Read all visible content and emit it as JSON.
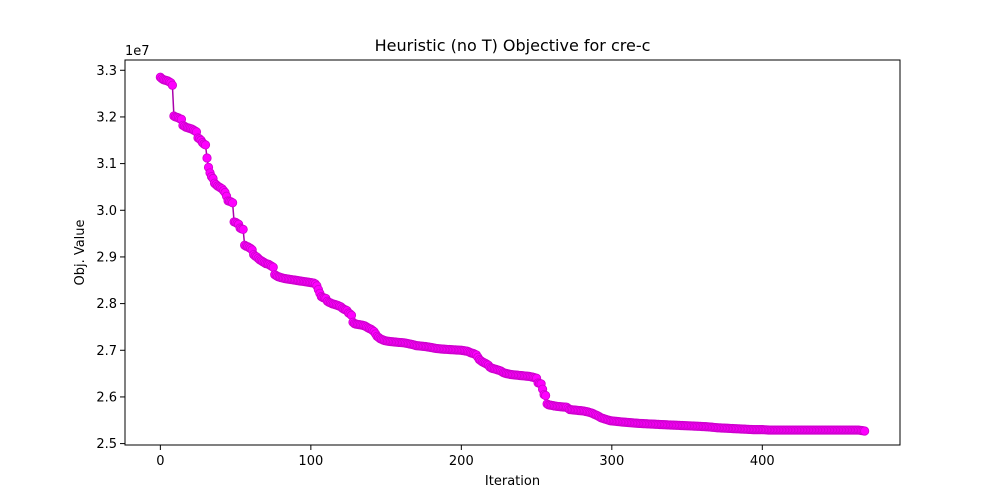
{
  "chart_data": {
    "type": "line",
    "title": "Heuristic (no T) Objective for cre-c",
    "xlabel": "Iteration",
    "ylabel": "Obj. Value",
    "y_scale_label": "1e7",
    "xlim": [
      -23.5,
      491.5
    ],
    "ylim": [
      24970000,
      33220000
    ],
    "x_ticks": [
      0,
      100,
      200,
      300,
      400
    ],
    "x_tick_labels": [
      "0",
      "100",
      "200",
      "300",
      "400"
    ],
    "y_ticks": [
      25000000,
      26000000,
      27000000,
      28000000,
      29000000,
      30000000,
      31000000,
      32000000,
      33000000
    ],
    "y_tick_labels": [
      "2.5",
      "2.6",
      "2.7",
      "2.8",
      "2.9",
      "3.0",
      "3.1",
      "3.2",
      "3.3"
    ],
    "grid": false,
    "series": [
      {
        "color": "#ff00ff",
        "line_color": "#aa00aa",
        "marker": "circle",
        "x_end": 468,
        "points": [
          [
            0,
            32850000
          ],
          [
            1,
            32820000
          ],
          [
            2,
            32800000
          ],
          [
            3,
            32790000
          ],
          [
            4,
            32780000
          ],
          [
            5,
            32770000
          ],
          [
            6,
            32750000
          ],
          [
            7,
            32730000
          ],
          [
            8,
            32680000
          ],
          [
            9,
            32020000
          ],
          [
            10,
            32000000
          ],
          [
            11,
            31990000
          ],
          [
            12,
            31980000
          ],
          [
            13,
            31960000
          ],
          [
            14,
            31950000
          ],
          [
            15,
            31820000
          ],
          [
            16,
            31800000
          ],
          [
            17,
            31780000
          ],
          [
            18,
            31770000
          ],
          [
            19,
            31760000
          ],
          [
            20,
            31750000
          ],
          [
            21,
            31740000
          ],
          [
            22,
            31720000
          ],
          [
            23,
            31700000
          ],
          [
            24,
            31680000
          ],
          [
            25,
            31550000
          ],
          [
            26,
            31530000
          ],
          [
            27,
            31500000
          ],
          [
            28,
            31450000
          ],
          [
            29,
            31420000
          ],
          [
            30,
            31400000
          ],
          [
            31,
            31120000
          ],
          [
            32,
            30920000
          ],
          [
            33,
            30800000
          ],
          [
            34,
            30720000
          ],
          [
            35,
            30680000
          ],
          [
            36,
            30580000
          ],
          [
            37,
            30550000
          ],
          [
            38,
            30520000
          ],
          [
            39,
            30500000
          ],
          [
            40,
            30480000
          ],
          [
            41,
            30460000
          ],
          [
            42,
            30420000
          ],
          [
            43,
            30380000
          ],
          [
            44,
            30300000
          ],
          [
            45,
            30200000
          ],
          [
            46,
            30190000
          ],
          [
            47,
            30180000
          ],
          [
            48,
            30160000
          ],
          [
            49,
            29750000
          ],
          [
            50,
            29740000
          ],
          [
            51,
            29720000
          ],
          [
            52,
            29700000
          ],
          [
            53,
            29620000
          ],
          [
            54,
            29600000
          ],
          [
            55,
            29590000
          ],
          [
            56,
            29250000
          ],
          [
            57,
            29230000
          ],
          [
            58,
            29220000
          ],
          [
            59,
            29200000
          ],
          [
            60,
            29180000
          ],
          [
            61,
            29150000
          ],
          [
            62,
            29050000
          ],
          [
            63,
            29020000
          ],
          [
            64,
            29000000
          ],
          [
            65,
            28970000
          ],
          [
            66,
            28940000
          ],
          [
            67,
            28920000
          ],
          [
            68,
            28900000
          ],
          [
            69,
            28880000
          ],
          [
            70,
            28860000
          ],
          [
            71,
            28850000
          ],
          [
            72,
            28840000
          ],
          [
            73,
            28820000
          ],
          [
            74,
            28800000
          ],
          [
            75,
            28780000
          ],
          [
            76,
            28620000
          ],
          [
            77,
            28600000
          ],
          [
            78,
            28580000
          ],
          [
            79,
            28570000
          ],
          [
            80,
            28560000
          ],
          [
            82,
            28540000
          ],
          [
            84,
            28530000
          ],
          [
            86,
            28520000
          ],
          [
            88,
            28510000
          ],
          [
            90,
            28500000
          ],
          [
            92,
            28490000
          ],
          [
            94,
            28480000
          ],
          [
            96,
            28470000
          ],
          [
            98,
            28460000
          ],
          [
            100,
            28450000
          ],
          [
            102,
            28440000
          ],
          [
            103,
            28420000
          ],
          [
            104,
            28380000
          ],
          [
            105,
            28300000
          ],
          [
            106,
            28220000
          ],
          [
            107,
            28150000
          ],
          [
            108,
            28130000
          ],
          [
            109,
            28120000
          ],
          [
            110,
            28110000
          ],
          [
            111,
            28050000
          ],
          [
            112,
            28030000
          ],
          [
            114,
            28000000
          ],
          [
            116,
            27980000
          ],
          [
            118,
            27960000
          ],
          [
            120,
            27930000
          ],
          [
            121,
            27900000
          ],
          [
            122,
            27880000
          ],
          [
            124,
            27850000
          ],
          [
            125,
            27800000
          ],
          [
            126,
            27780000
          ],
          [
            127,
            27750000
          ],
          [
            128,
            27600000
          ],
          [
            129,
            27570000
          ],
          [
            130,
            27560000
          ],
          [
            132,
            27550000
          ],
          [
            134,
            27540000
          ],
          [
            136,
            27520000
          ],
          [
            138,
            27480000
          ],
          [
            140,
            27450000
          ],
          [
            142,
            27400000
          ],
          [
            143,
            27350000
          ],
          [
            144,
            27300000
          ],
          [
            146,
            27250000
          ],
          [
            148,
            27220000
          ],
          [
            150,
            27200000
          ],
          [
            152,
            27190000
          ],
          [
            155,
            27180000
          ],
          [
            158,
            27170000
          ],
          [
            162,
            27160000
          ],
          [
            165,
            27140000
          ],
          [
            168,
            27120000
          ],
          [
            170,
            27100000
          ],
          [
            173,
            27090000
          ],
          [
            176,
            27080000
          ],
          [
            180,
            27060000
          ],
          [
            183,
            27040000
          ],
          [
            186,
            27030000
          ],
          [
            190,
            27020000
          ],
          [
            195,
            27010000
          ],
          [
            200,
            27000000
          ],
          [
            202,
            26990000
          ],
          [
            204,
            26980000
          ],
          [
            206,
            26950000
          ],
          [
            208,
            26930000
          ],
          [
            210,
            26900000
          ],
          [
            211,
            26850000
          ],
          [
            212,
            26800000
          ],
          [
            214,
            26750000
          ],
          [
            216,
            26720000
          ],
          [
            218,
            26680000
          ],
          [
            219,
            26640000
          ],
          [
            220,
            26620000
          ],
          [
            222,
            26600000
          ],
          [
            224,
            26580000
          ],
          [
            226,
            26560000
          ],
          [
            228,
            26520000
          ],
          [
            230,
            26500000
          ],
          [
            233,
            26480000
          ],
          [
            236,
            26470000
          ],
          [
            239,
            26460000
          ],
          [
            242,
            26450000
          ],
          [
            245,
            26440000
          ],
          [
            248,
            26420000
          ],
          [
            250,
            26400000
          ],
          [
            251,
            26300000
          ],
          [
            253,
            26280000
          ],
          [
            255,
            26050000
          ],
          [
            256,
            26030000
          ],
          [
            257,
            25850000
          ],
          [
            258,
            25830000
          ],
          [
            260,
            25820000
          ],
          [
            263,
            25800000
          ],
          [
            266,
            25790000
          ],
          [
            270,
            25780000
          ],
          [
            272,
            25730000
          ],
          [
            275,
            25720000
          ],
          [
            278,
            25710000
          ],
          [
            281,
            25700000
          ],
          [
            284,
            25680000
          ],
          [
            287,
            25650000
          ],
          [
            289,
            25620000
          ],
          [
            291,
            25590000
          ],
          [
            293,
            25550000
          ],
          [
            296,
            25520000
          ],
          [
            299,
            25490000
          ],
          [
            302,
            25480000
          ],
          [
            305,
            25470000
          ],
          [
            308,
            25460000
          ],
          [
            312,
            25450000
          ],
          [
            315,
            25440000
          ],
          [
            320,
            25430000
          ],
          [
            326,
            25420000
          ],
          [
            332,
            25410000
          ],
          [
            338,
            25400000
          ],
          [
            345,
            25390000
          ],
          [
            352,
            25380000
          ],
          [
            358,
            25370000
          ],
          [
            364,
            25360000
          ],
          [
            370,
            25340000
          ],
          [
            376,
            25330000
          ],
          [
            382,
            25320000
          ],
          [
            388,
            25310000
          ],
          [
            394,
            25300000
          ],
          [
            400,
            25300000
          ],
          [
            405,
            25290000
          ],
          [
            410,
            25290000
          ],
          [
            420,
            25290000
          ],
          [
            430,
            25290000
          ],
          [
            440,
            25290000
          ],
          [
            450,
            25290000
          ],
          [
            460,
            25290000
          ],
          [
            464,
            25290000
          ],
          [
            466,
            25280000
          ],
          [
            468,
            25270000
          ]
        ]
      }
    ]
  }
}
